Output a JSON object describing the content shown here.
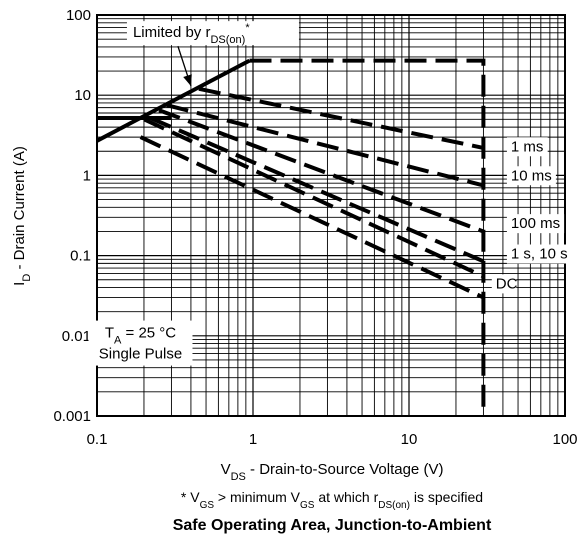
{
  "chart_data": {
    "type": "line",
    "title": "Safe Operating Area, Junction-to-Ambient",
    "footnote": {
      "prefix": "* V",
      "gs_sub": "GS",
      "mid": " > minimum V",
      "gs_sub2": "GS",
      "mid2": " at which r",
      "ds_sub": "DS(on)",
      "suffix": " is specified"
    },
    "xlabel": {
      "main": "V",
      "sub": "DS",
      "rest": " - Drain-to-Source Voltage (V)"
    },
    "ylabel": {
      "main": "I",
      "sub": "D",
      "rest": " - Drain Current (A)"
    },
    "x_scale": "log",
    "y_scale": "log",
    "xlim": [
      0.1,
      100
    ],
    "ylim": [
      0.001,
      100
    ],
    "x_ticks": [
      {
        "value": 0.1,
        "label": "0.1"
      },
      {
        "value": 1,
        "label": "1"
      },
      {
        "value": 10,
        "label": "10"
      },
      {
        "value": 100,
        "label": "100"
      }
    ],
    "y_ticks": [
      {
        "value": 0.001,
        "label": "0.001"
      },
      {
        "value": 0.01,
        "label": "0.01"
      },
      {
        "value": 0.1,
        "label": "0.1"
      },
      {
        "value": 1,
        "label": "1"
      },
      {
        "value": 10,
        "label": "10"
      },
      {
        "value": 100,
        "label": "100"
      }
    ],
    "grid": true,
    "series": [
      {
        "name": "Limited by rDS(on)*",
        "style": "solid",
        "points": [
          [
            0.1,
            2.7
          ],
          [
            0.95,
            27
          ]
        ]
      },
      {
        "name": "",
        "style": "solid",
        "points": [
          [
            0.1,
            5.2
          ],
          [
            0.3,
            5.2
          ]
        ]
      },
      {
        "name": "",
        "style": "dashed",
        "points": [
          [
            0.95,
            27
          ],
          [
            30,
            27
          ],
          [
            30,
            0.001
          ]
        ]
      },
      {
        "name": "1 ms",
        "style": "dashed",
        "points": [
          [
            0.45,
            12
          ],
          [
            30,
            2.2
          ]
        ]
      },
      {
        "name": "10 ms",
        "style": "dashed",
        "points": [
          [
            0.28,
            7.5
          ],
          [
            30,
            0.75
          ]
        ]
      },
      {
        "name": "100 ms",
        "style": "dashed",
        "points": [
          [
            0.25,
            6.5
          ],
          [
            30,
            0.2
          ]
        ]
      },
      {
        "name": "1 s",
        "style": "dashed",
        "points": [
          [
            0.22,
            5.2
          ],
          [
            30,
            0.085
          ]
        ]
      },
      {
        "name": "10 s",
        "style": "dashed",
        "points": [
          [
            0.2,
            5
          ],
          [
            30,
            0.055
          ]
        ]
      },
      {
        "name": "DC",
        "style": "dashed",
        "points": [
          [
            0.19,
            3
          ],
          [
            30,
            0.03
          ]
        ]
      }
    ],
    "curve_labels": [
      {
        "text": "1 ms",
        "x": 45,
        "y": 2.0
      },
      {
        "text": "10 ms",
        "x": 45,
        "y": 0.87
      },
      {
        "text": "100 ms",
        "x": 45,
        "y": 0.22
      },
      {
        "text": "1 s, 10 s",
        "x": 45,
        "y": 0.092
      },
      {
        "text": "DC",
        "x": 36,
        "y": 0.039
      }
    ],
    "annotations": {
      "limited_by": {
        "text": "Limited by r",
        "sub": "DS(on)",
        "sup": "*",
        "x": 0.17,
        "y": 53
      },
      "ta_line": {
        "text": "T",
        "sub": "A",
        "rest": " = 25 °C",
        "x": 0.19,
        "y": 0.0095
      },
      "pulse_line": {
        "text": "Single Pulse",
        "x": 0.19,
        "y": 0.0052
      }
    }
  }
}
